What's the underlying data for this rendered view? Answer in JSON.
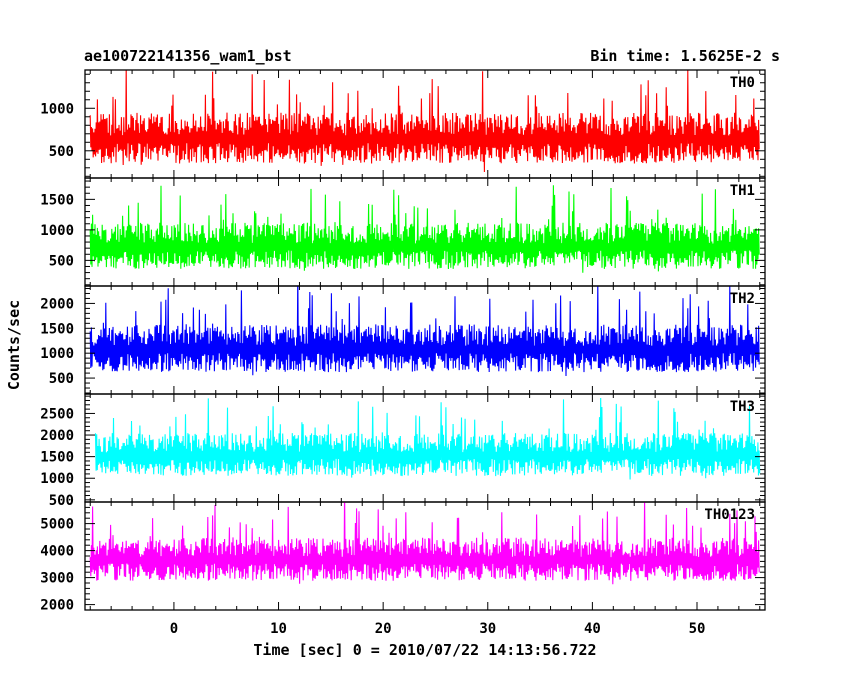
{
  "chart_data": {
    "type": "line",
    "title_left": "ae100722141356_wam1_bst",
    "title_right": "Bin time: 1.5625E-2 s",
    "xlabel": "Time [sec] 0 = 2010/07/22 14:13:56.722",
    "ylabel": "Counts/sec",
    "xlim": [
      -8.5,
      56.5
    ],
    "x_ticks": [
      0,
      10,
      20,
      30,
      40,
      50
    ],
    "grid": false,
    "series": [
      {
        "name": "TH0",
        "color": "#ff0000",
        "ylim": [
          180,
          1450
        ],
        "y_ticks": [
          500,
          1000
        ],
        "x_range": [
          -8,
          56
        ],
        "baseline": 620,
        "spread": 300,
        "min_clip": 250
      },
      {
        "name": "TH1",
        "color": "#00ff00",
        "ylim": [
          80,
          1850
        ],
        "y_ticks": [
          500,
          1000,
          1500
        ],
        "x_range": [
          -8,
          56
        ],
        "baseline": 700,
        "spread": 380,
        "min_clip": 150
      },
      {
        "name": "TH2",
        "color": "#0000ff",
        "ylim": [
          180,
          2350
        ],
        "y_ticks": [
          500,
          1000,
          1500,
          2000
        ],
        "x_range": [
          -8,
          56
        ],
        "baseline": 1050,
        "spread": 480,
        "min_clip": 280
      },
      {
        "name": "TH3",
        "color": "#00ffff",
        "ylim": [
          450,
          2950
        ],
        "y_ticks": [
          500,
          1000,
          1500,
          2000,
          2500
        ],
        "x_range": [
          -7.5,
          56
        ],
        "baseline": 1500,
        "spread": 500,
        "min_clip": 650
      },
      {
        "name": "TH0123",
        "color": "#ff00ff",
        "ylim": [
          1800,
          5800
        ],
        "y_ticks": [
          2000,
          3000,
          4000,
          5000
        ],
        "x_range": [
          -8,
          56
        ],
        "baseline": 3600,
        "spread": 800,
        "min_clip": 1900
      }
    ]
  }
}
